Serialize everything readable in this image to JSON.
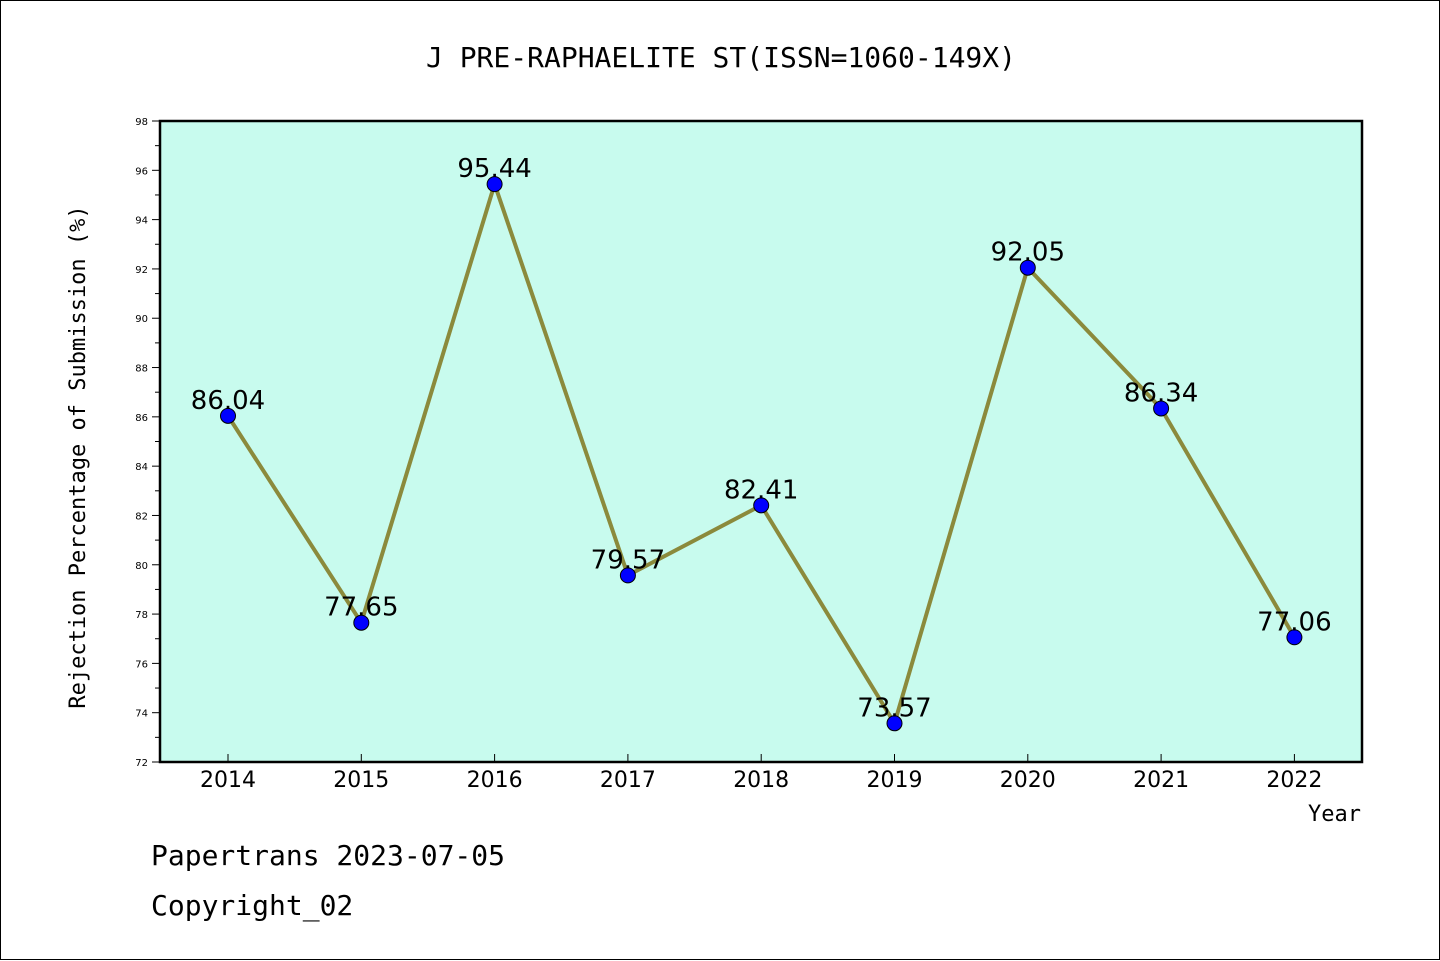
{
  "chart_data": {
    "type": "line",
    "title": "J PRE-RAPHAELITE ST(ISSN=1060-149X)",
    "xlabel": "Year",
    "ylabel": "Rejection Percentage of Submission (%)",
    "categories": [
      "2014",
      "2015",
      "2016",
      "2017",
      "2018",
      "2019",
      "2020",
      "2021",
      "2022"
    ],
    "series": [
      {
        "values": [
          86.04,
          77.65,
          95.44,
          79.57,
          82.41,
          73.57,
          92.05,
          86.34,
          77.06
        ],
        "labels": [
          "86.04",
          "77.65",
          "95.44",
          "79.57",
          "82.41",
          "73.57",
          "92.05",
          "86.34",
          "77.06"
        ],
        "line_color": "#8b8a3c",
        "marker_color": "#0000ff"
      }
    ],
    "ylim": [
      72,
      98
    ],
    "yticks": [
      "72",
      "74",
      "76",
      "78",
      "80",
      "82",
      "84",
      "86",
      "88",
      "90",
      "92",
      "94",
      "96",
      "98"
    ],
    "plot_background": "#c8fbee",
    "grid": false,
    "legend": "none"
  },
  "footer": {
    "line1": "Papertrans 2023-07-05",
    "line2": "Copyright_02"
  }
}
